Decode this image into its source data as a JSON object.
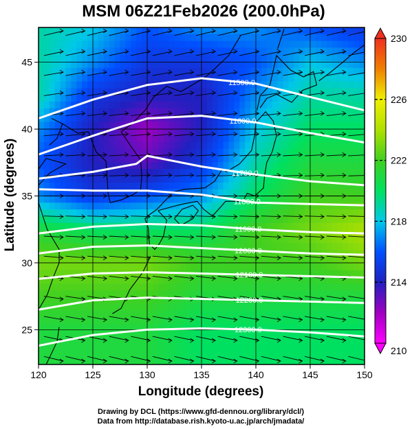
{
  "title": "MSM 06Z21Feb2026 (200.0hPa)",
  "credits": [
    "Drawing by DCL (https://www.gfd-dennou.org/library/dcl/)",
    "Data from http://database.rish.kyoto-u.ac.jp/arch/jmadata/"
  ],
  "chart_data": {
    "type": "heatmap",
    "xlabel": "Longitude (degrees)",
    "ylabel": "Latitude  (degrees)",
    "xlim": [
      120,
      150
    ],
    "ylim": [
      22.4,
      47.6
    ],
    "x_ticks": [
      120,
      125,
      130,
      135,
      140,
      145,
      150
    ],
    "y_ticks": [
      25,
      30,
      35,
      40,
      45
    ],
    "grid": true,
    "colorbar": {
      "range": [
        210,
        230
      ],
      "ticks": [
        210,
        214,
        218,
        222,
        226,
        230
      ],
      "stops": [
        {
          "value": 210,
          "color": "#ff00ff"
        },
        {
          "value": 212,
          "color": "#a000c0"
        },
        {
          "value": 214,
          "color": "#2020c0"
        },
        {
          "value": 216,
          "color": "#0050ff"
        },
        {
          "value": 218,
          "color": "#00c8e8"
        },
        {
          "value": 220,
          "color": "#00e060"
        },
        {
          "value": 222,
          "color": "#40d020"
        },
        {
          "value": 224,
          "color": "#b0e000"
        },
        {
          "value": 226,
          "color": "#f0f000"
        },
        {
          "value": 228,
          "color": "#f08000"
        },
        {
          "value": 230,
          "color": "#f03020"
        }
      ]
    },
    "temperature_field": {
      "lons": [
        120,
        125,
        130,
        135,
        140,
        145,
        150
      ],
      "lats": [
        47.5,
        45,
        42.5,
        40,
        37.5,
        35,
        32.5,
        30,
        27.5,
        25,
        22.5
      ],
      "values": [
        [
          219,
          218,
          216,
          217,
          217,
          216,
          215
        ],
        [
          219,
          217,
          215,
          215,
          216,
          218,
          217
        ],
        [
          219,
          215,
          214,
          214,
          217,
          219,
          219
        ],
        [
          217,
          214,
          212,
          214,
          218,
          220,
          220
        ],
        [
          216,
          214,
          213,
          215,
          219,
          221,
          221
        ],
        [
          217,
          215,
          216,
          217,
          220,
          222,
          222
        ],
        [
          221,
          220,
          220,
          220,
          222,
          223,
          224
        ],
        [
          223,
          223,
          223,
          222,
          222,
          222,
          223
        ],
        [
          222,
          222,
          222,
          221,
          221,
          221,
          221
        ],
        [
          221,
          221,
          221,
          220,
          220,
          220,
          220
        ],
        [
          221,
          221,
          221,
          220,
          220,
          220,
          220
        ]
      ]
    },
    "height_contours": [
      {
        "label": "11500.0",
        "label_lon": 138.7,
        "points": [
          [
            120,
            40.8
          ],
          [
            125,
            42.2
          ],
          [
            130,
            43.3
          ],
          [
            135,
            43.8
          ],
          [
            140,
            43.4
          ],
          [
            145,
            42.4
          ],
          [
            150,
            41.4
          ]
        ]
      },
      {
        "label": "11600.0",
        "label_lon": 138.8,
        "points": [
          [
            120,
            38.1
          ],
          [
            125,
            39.5
          ],
          [
            130,
            40.8
          ],
          [
            135,
            41.0
          ],
          [
            140,
            40.5
          ],
          [
            145,
            39.7
          ],
          [
            150,
            39.0
          ]
        ]
      },
      {
        "label": "11700.0",
        "label_lon": 139.0,
        "points": [
          [
            120,
            36.3
          ],
          [
            125,
            36.8
          ],
          [
            129,
            37.4
          ],
          [
            130,
            38.0
          ],
          [
            135,
            37.2
          ],
          [
            140,
            36.6
          ],
          [
            145,
            36.1
          ],
          [
            150,
            35.8
          ]
        ]
      },
      {
        "label": "11800.0",
        "label_lon": 139.2,
        "points": [
          [
            120,
            35.5
          ],
          [
            125,
            35.4
          ],
          [
            130,
            35.4
          ],
          [
            135,
            35.1
          ],
          [
            140,
            34.5
          ],
          [
            145,
            34.4
          ],
          [
            150,
            34.3
          ]
        ]
      },
      {
        "label": "11900.0",
        "label_lon": 139.3,
        "points": [
          [
            120,
            32.2
          ],
          [
            125,
            32.7
          ],
          [
            130,
            32.9
          ],
          [
            135,
            32.8
          ],
          [
            140,
            32.5
          ],
          [
            145,
            32.3
          ],
          [
            150,
            32.2
          ]
        ]
      },
      {
        "label": "12000.0",
        "label_lon": 139.3,
        "points": [
          [
            120,
            30.7
          ],
          [
            125,
            31.2
          ],
          [
            130,
            31.3
          ],
          [
            135,
            31.1
          ],
          [
            140,
            30.9
          ],
          [
            145,
            30.7
          ],
          [
            150,
            30.6
          ]
        ]
      },
      {
        "label": "12100.0",
        "label_lon": 139.4,
        "points": [
          [
            120,
            28.8
          ],
          [
            125,
            29.2
          ],
          [
            130,
            29.3
          ],
          [
            135,
            29.2
          ],
          [
            140,
            29.1
          ],
          [
            145,
            29.0
          ],
          [
            150,
            28.9
          ]
        ]
      },
      {
        "label": "12200.0",
        "label_lon": 139.4,
        "points": [
          [
            120,
            26.5
          ],
          [
            125,
            27.2
          ],
          [
            130,
            27.4
          ],
          [
            135,
            27.3
          ],
          [
            140,
            27.2
          ],
          [
            145,
            27.1
          ],
          [
            150,
            27.0
          ]
        ]
      },
      {
        "label": "12300.0",
        "label_lon": 139.3,
        "points": [
          [
            120,
            23.8
          ],
          [
            125,
            24.6
          ],
          [
            130,
            25.0
          ],
          [
            135,
            25.1
          ],
          [
            140,
            25.0
          ],
          [
            145,
            24.8
          ],
          [
            150,
            24.5
          ]
        ]
      }
    ],
    "wind": {
      "rows_lat": [
        47.0,
        45.5,
        44.0,
        42.5,
        41.0,
        39.5,
        38.0,
        36.5,
        35.0,
        33.5,
        32.0,
        30.5,
        29.0,
        27.5,
        26.0,
        24.5,
        23.0
      ],
      "cols_lon": [
        120.5,
        122.5,
        124.5,
        126.5,
        128.5,
        130.5,
        132.5,
        134.5,
        136.5,
        138.5,
        140.5,
        142.5,
        144.5,
        146.5,
        148.5
      ]
    },
    "coastlines": [
      {
        "name": "korea",
        "points": [
          [
            124.6,
            39.8
          ],
          [
            125.3,
            38.3
          ],
          [
            126.2,
            37.6
          ],
          [
            126.3,
            36.6
          ],
          [
            126.4,
            35.2
          ],
          [
            126.6,
            34.5
          ],
          [
            127.6,
            34.7
          ],
          [
            128.7,
            35.1
          ],
          [
            129.4,
            35.5
          ],
          [
            129.5,
            36.5
          ],
          [
            129.4,
            37.7
          ],
          [
            128.6,
            38.6
          ],
          [
            127.6,
            39.8
          ],
          [
            128.6,
            40.4
          ],
          [
            129.8,
            41.4
          ],
          [
            130.6,
            42.4
          ]
        ]
      },
      {
        "name": "manchuria-coast",
        "points": [
          [
            121.2,
            40.8
          ],
          [
            122.2,
            40.4
          ],
          [
            123.6,
            39.7
          ],
          [
            124.6,
            39.8
          ]
        ]
      },
      {
        "name": "liaodong",
        "points": [
          [
            121.0,
            38.8
          ],
          [
            121.7,
            39.3
          ],
          [
            122.2,
            40.4
          ]
        ]
      },
      {
        "name": "shandong",
        "points": [
          [
            120.0,
            37.0
          ],
          [
            120.7,
            37.8
          ],
          [
            122.5,
            37.4
          ],
          [
            121.0,
            36.7
          ],
          [
            120.0,
            35.8
          ]
        ]
      },
      {
        "name": "china-coast",
        "points": [
          [
            120.0,
            34.5
          ],
          [
            120.8,
            32.5
          ],
          [
            121.9,
            31.0
          ],
          [
            121.9,
            30.0
          ],
          [
            121.4,
            29.0
          ],
          [
            120.8,
            27.6
          ],
          [
            120.0,
            26.5
          ]
        ]
      },
      {
        "name": "primorye",
        "points": [
          [
            130.6,
            42.4
          ],
          [
            131.8,
            43.2
          ],
          [
            133.1,
            42.8
          ],
          [
            135.4,
            43.9
          ],
          [
            137.5,
            45.5
          ],
          [
            138.6,
            47.0
          ]
        ]
      },
      {
        "name": "honshu",
        "points": [
          [
            130.9,
            34.0
          ],
          [
            132.4,
            35.3
          ],
          [
            133.4,
            35.5
          ],
          [
            135.3,
            35.6
          ],
          [
            136.2,
            36.1
          ],
          [
            136.9,
            37.0
          ],
          [
            137.3,
            36.8
          ],
          [
            138.5,
            37.4
          ],
          [
            139.6,
            38.4
          ],
          [
            139.9,
            39.6
          ],
          [
            140.0,
            40.5
          ],
          [
            140.9,
            41.3
          ],
          [
            141.6,
            40.6
          ],
          [
            141.9,
            39.5
          ],
          [
            141.5,
            38.3
          ],
          [
            141.0,
            37.5
          ],
          [
            140.8,
            36.5
          ],
          [
            140.7,
            35.6
          ],
          [
            139.9,
            35.0
          ],
          [
            139.2,
            35.2
          ],
          [
            138.8,
            34.6
          ],
          [
            137.2,
            34.6
          ],
          [
            136.9,
            34.3
          ],
          [
            136.0,
            33.5
          ],
          [
            135.2,
            34.0
          ],
          [
            134.6,
            34.6
          ],
          [
            133.3,
            34.4
          ],
          [
            132.3,
            34.2
          ],
          [
            131.0,
            33.9
          ]
        ]
      },
      {
        "name": "hokkaido",
        "points": [
          [
            140.1,
            41.4
          ],
          [
            140.4,
            42.5
          ],
          [
            141.3,
            43.3
          ],
          [
            141.6,
            44.4
          ],
          [
            141.9,
            45.5
          ],
          [
            143.2,
            44.4
          ],
          [
            144.4,
            43.9
          ],
          [
            145.3,
            44.3
          ],
          [
            145.6,
            43.3
          ],
          [
            144.3,
            42.9
          ],
          [
            143.3,
            42.0
          ],
          [
            141.9,
            42.6
          ],
          [
            141.0,
            42.3
          ],
          [
            140.4,
            41.6
          ]
        ]
      },
      {
        "name": "kyushu",
        "points": [
          [
            130.9,
            34.0
          ],
          [
            130.2,
            33.6
          ],
          [
            129.8,
            33.3
          ],
          [
            130.1,
            32.6
          ],
          [
            130.2,
            31.4
          ],
          [
            130.7,
            31.0
          ],
          [
            131.1,
            31.4
          ],
          [
            131.5,
            32.0
          ],
          [
            131.8,
            33.2
          ],
          [
            131.0,
            33.9
          ]
        ]
      },
      {
        "name": "shikoku",
        "points": [
          [
            132.5,
            33.3
          ],
          [
            133.1,
            32.8
          ],
          [
            134.2,
            33.3
          ],
          [
            134.7,
            33.9
          ],
          [
            134.2,
            34.3
          ],
          [
            133.2,
            34.0
          ],
          [
            132.5,
            33.3
          ]
        ]
      },
      {
        "name": "taiwan",
        "points": [
          [
            121.9,
            25.2
          ],
          [
            121.7,
            24.1
          ],
          [
            121.0,
            22.9
          ],
          [
            120.7,
            22.4
          ]
        ]
      },
      {
        "name": "sakhalin",
        "points": [
          [
            142.0,
            46.0
          ],
          [
            142.6,
            47.5
          ]
        ]
      },
      {
        "name": "kurils",
        "points": [
          [
            145.8,
            43.6
          ],
          [
            146.8,
            44.2
          ],
          [
            148.0,
            45.0
          ],
          [
            149.0,
            45.7
          ],
          [
            150.0,
            46.3
          ]
        ]
      },
      {
        "name": "ryukyu",
        "points": [
          [
            130.3,
            30.5
          ],
          [
            129.6,
            29.3
          ],
          [
            128.4,
            28.0
          ],
          [
            127.6,
            26.6
          ],
          [
            126.8,
            26.2
          ]
        ]
      }
    ]
  }
}
